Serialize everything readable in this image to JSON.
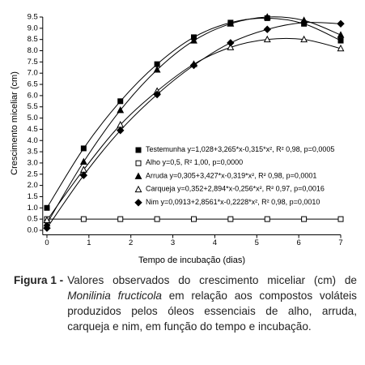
{
  "chart_data": {
    "type": "scatter-curve",
    "x_label": "Tempo de incubação (dias)",
    "y_label": "Crescimento miceliar (cm)",
    "x": [
      0,
      0.875,
      1.75,
      2.625,
      3.5,
      4.375,
      5.25,
      6.125,
      7
    ],
    "xlim": [
      -0.1,
      7
    ],
    "xticks": [
      0,
      1,
      2,
      3,
      4,
      5,
      6,
      7
    ],
    "ylim": [
      -0.2,
      9.5
    ],
    "yticks": [
      {
        "value": 0,
        "label": "0.0"
      },
      0.5,
      {
        "value": 1,
        "label": "1.0"
      },
      1.5,
      {
        "value": 2,
        "label": "2.0"
      },
      2.5,
      {
        "value": 3,
        "label": "3.0"
      },
      3.5,
      {
        "value": 4,
        "label": "4.0"
      },
      4.5,
      {
        "value": 5,
        "label": "5.0"
      },
      5.5,
      {
        "value": 6,
        "label": "6.0"
      },
      6.5,
      {
        "value": 7,
        "label": "7.0"
      },
      7.5,
      {
        "value": 8,
        "label": "8.0"
      },
      8.5,
      {
        "value": 9,
        "label": "9.0"
      },
      9.5
    ],
    "series": [
      {
        "name": "Testemunha",
        "equation": "y=1,028+3,265*x-0,315*x², R² 0,98, p=0,0005",
        "color": "#000000",
        "marker": "square",
        "filled": true,
        "values": [
          1.0,
          3.65,
          5.75,
          7.4,
          8.6,
          9.25,
          9.45,
          9.2,
          8.45
        ]
      },
      {
        "name": "Alho",
        "equation": "y=0,5, R² 1,00, p=0,0000",
        "color": "#000000",
        "marker": "square",
        "filled": false,
        "values": [
          0.5,
          0.5,
          0.5,
          0.5,
          0.5,
          0.5,
          0.5,
          0.5,
          0.5
        ]
      },
      {
        "name": "Arruda",
        "equation": "y=0,305+3,427*x-0,319*x², R² 0,98, p=0,0001",
        "color": "#000000",
        "marker": "triangle",
        "filled": true,
        "values": [
          0.3,
          3.05,
          5.35,
          7.15,
          8.45,
          9.2,
          9.5,
          9.35,
          8.7
        ]
      },
      {
        "name": "Carqueja",
        "equation": "y=0,352+2,894*x-0,256*x², R² 0,97, p=0,0016",
        "color": "#000000",
        "marker": "triangle",
        "filled": false,
        "values": [
          0.45,
          2.7,
          4.7,
          6.2,
          7.4,
          8.15,
          8.5,
          8.5,
          8.1
        ]
      },
      {
        "name": "Nim",
        "equation": "y=0,0913+2,8561*x-0,2228*x², R² 0,98, p=0,0010",
        "color": "#000000",
        "marker": "diamond",
        "filled": true,
        "values": [
          0.1,
          2.45,
          4.45,
          6.05,
          7.35,
          8.35,
          8.95,
          9.25,
          9.2
        ]
      }
    ]
  },
  "caption": {
    "label": "Figura 1 -",
    "text_before": "Valores observados do crescimento miceliar (cm) de",
    "species": "Monilinia fructicola",
    "text_after": "em relação aos compostos voláteis produzidos pelos óleos essenciais de alho, arruda, carqueja e nim, em função do tempo e incubação."
  }
}
